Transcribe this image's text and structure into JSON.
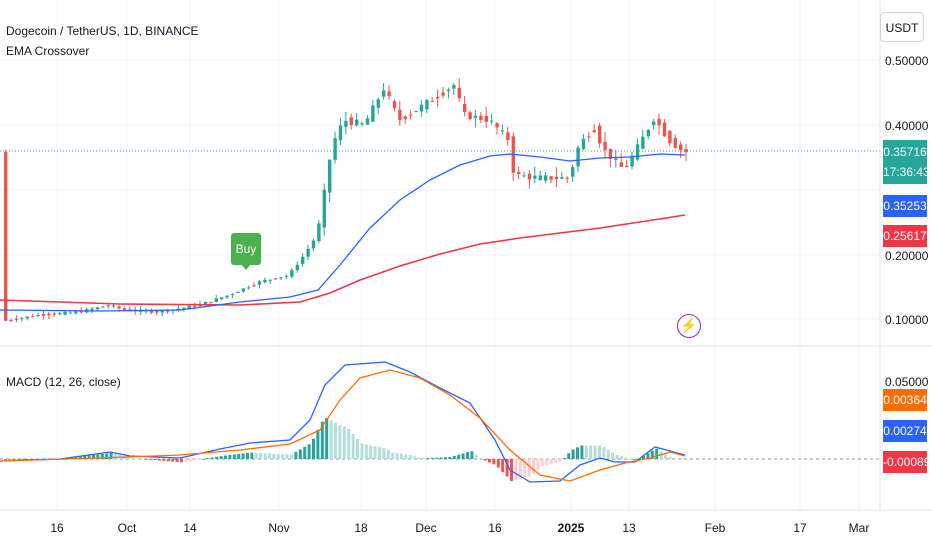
{
  "header": {
    "title": "Dogecoin / TetherUS, 1D, BINANCE",
    "indicator": "EMA Crossover",
    "currency_button": "USDT"
  },
  "price_axis": {
    "labels": [
      "0.50000",
      "0.40000",
      "0.20000",
      "0.10000"
    ],
    "current_price": "0.35716",
    "countdown": "17:36:43",
    "ema_fast": "0.35253",
    "ema_slow": "0.25617",
    "colors": {
      "up": "#26a69a",
      "down": "#ef5350",
      "ema_fast": "#2962ff",
      "ema_slow": "#f23645"
    }
  },
  "macd": {
    "label": "MACD (12, 26, close)",
    "axis_label": "0.05000",
    "signal_value": "0.00364",
    "macd_value": "0.00274",
    "hist_value": "-0.00089",
    "colors": {
      "macd": "#2962ff",
      "signal": "#ff6d00"
    }
  },
  "signal_label": "Buy",
  "time_axis": [
    "16",
    "Oct",
    "14",
    "Nov",
    "18",
    "Dec",
    "16",
    "2025",
    "13",
    "Feb",
    "17",
    "Mar"
  ],
  "chart_data": {
    "type": "candlestick",
    "ema_fast_end": 0.35253,
    "ema_slow_end": 0.25617,
    "last_close": 0.35716
  }
}
